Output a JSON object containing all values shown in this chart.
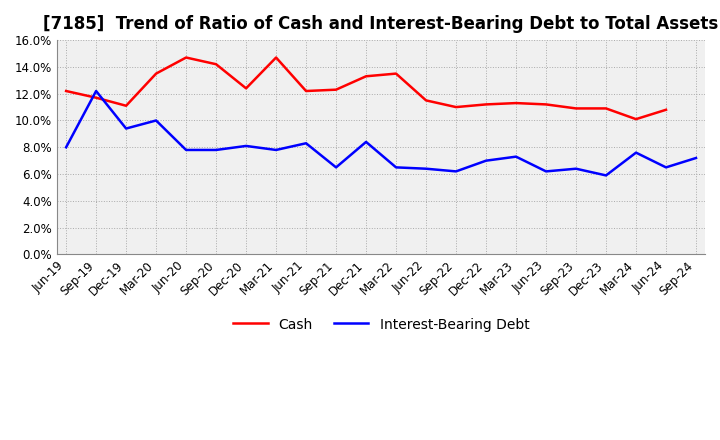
{
  "title": "[7185]  Trend of Ratio of Cash and Interest-Bearing Debt to Total Assets",
  "x_labels": [
    "Jun-19",
    "Sep-19",
    "Dec-19",
    "Mar-20",
    "Jun-20",
    "Sep-20",
    "Dec-20",
    "Mar-21",
    "Jun-21",
    "Sep-21",
    "Dec-21",
    "Mar-22",
    "Jun-22",
    "Sep-22",
    "Dec-22",
    "Mar-23",
    "Jun-23",
    "Sep-23",
    "Dec-23",
    "Mar-24",
    "Jun-24",
    "Sep-24"
  ],
  "cash": [
    12.2,
    11.7,
    11.1,
    13.5,
    14.7,
    14.2,
    12.4,
    14.7,
    12.2,
    12.3,
    13.3,
    13.5,
    11.5,
    11.0,
    11.2,
    11.3,
    11.2,
    10.9,
    10.9,
    10.1,
    10.8,
    null
  ],
  "debt": [
    8.0,
    12.2,
    9.4,
    10.0,
    7.8,
    7.8,
    8.1,
    7.8,
    8.3,
    6.5,
    8.4,
    6.5,
    6.4,
    6.2,
    7.0,
    7.3,
    6.2,
    6.4,
    5.9,
    7.6,
    6.5,
    7.2
  ],
  "cash_color": "#ff0000",
  "debt_color": "#0000ff",
  "bg_color": "#ffffff",
  "plot_bg_color": "#f0f0f0",
  "grid_color": "#aaaaaa",
  "ylim": [
    0.0,
    16.0
  ],
  "yticks": [
    0.0,
    2.0,
    4.0,
    6.0,
    8.0,
    10.0,
    12.0,
    14.0,
    16.0
  ],
  "legend_cash": "Cash",
  "legend_debt": "Interest-Bearing Debt",
  "title_fontsize": 12,
  "axis_fontsize": 8.5,
  "legend_fontsize": 10,
  "line_width": 1.8
}
